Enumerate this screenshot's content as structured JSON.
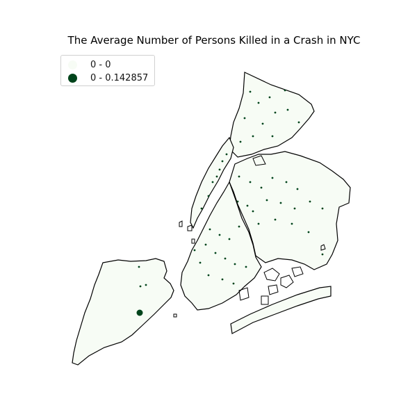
{
  "chart_data": {
    "type": "choropleth-map",
    "title": "The Average Number of Persons Killed in a Crash in NYC",
    "legend": {
      "placement": "top-left",
      "entries": [
        {
          "label": "0 - 0",
          "color": "#f7fcf5"
        },
        {
          "label": "0 - 0.142857",
          "color": "#00441b"
        }
      ]
    }
  }
}
